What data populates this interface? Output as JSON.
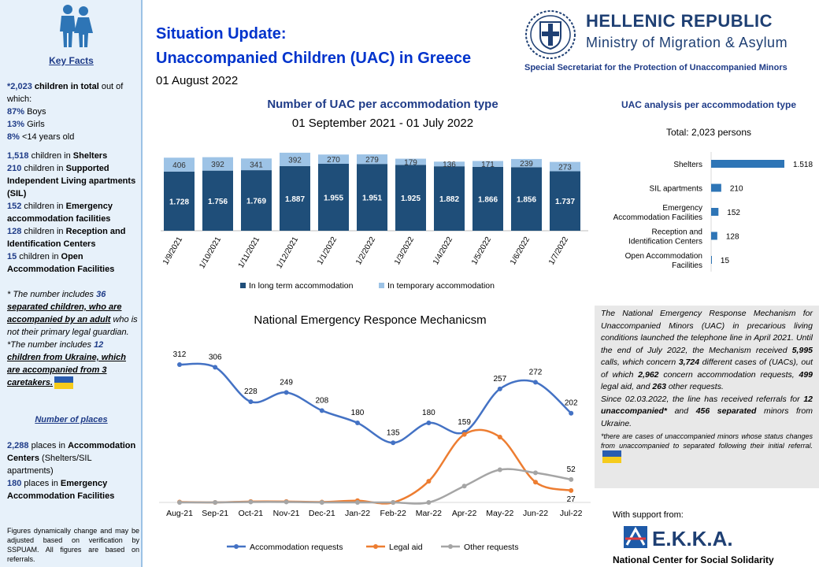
{
  "header": {
    "title_line1": "Situation Update:",
    "title_line2": "Unaccompanied Children (UAC) in Greece",
    "date": "01 August 2022",
    "republic": "HELLENIC REPUBLIC",
    "ministry": "Ministry of Migration & Asylum",
    "secretariat": "Special Secretariat for the Protection of Unaccompanied Minors"
  },
  "sidebar": {
    "key_facts_title": "Key Facts",
    "total": "*2,023",
    "total_text": " children in total",
    "total_tail": " out of which:",
    "boys_pct": "87%",
    "boys": " Boys",
    "girls_pct": "13%",
    "girls": " Girls",
    "young_pct": "8%",
    "young": " <14 years old",
    "shelters_n": "1,518",
    "shelters_pre": " children in ",
    "shelters_b": "Shelters",
    "sil_n": "210",
    "sil_pre": " children in ",
    "sil_b": "Supported Independent Living apartments (SIL)",
    "eaf_n": "152",
    "eaf_pre": " children in ",
    "eaf_b": "Emergency accommodation facilities",
    "ric_n": "128",
    "ric_pre": " children in ",
    "ric_b": "Reception and Identification Centers",
    "open_n": "15",
    "open_pre": " children in ",
    "open_b": "Open Accommodation Facilities",
    "note1_pre": "* The number includes ",
    "note1_n": "36",
    "note1_u": "separated children, who are accompanied by an adult",
    "note1_tail": " who is not their primary legal guardian.",
    "note2_pre": "*The number includes ",
    "note2_n": "12",
    "note2_u": "children from Ukraine, which are accompanied from 3 caretakers.",
    "places_title": "Number of places",
    "places_n": "2,288",
    "places_pre": " places in ",
    "places_b": "Accommodation Centers",
    "places_tail": " (Shelters/SIL apartments)",
    "places2_n": "180",
    "places2_pre": " places in ",
    "places2_b": "Emergency Accommodation Facilities",
    "footnote": "Figures dynamically change and may be adjusted based on verification by SSPUAM. All figures are based on referrals."
  },
  "chart_titles": {
    "c1_title": "Number of UAC per accommodation type",
    "c1_sub": "01 September 2021 - 01 July 2022",
    "c2_title": "UAC analysis per accommodation type",
    "c2_sub": "Total: 2,023 persons",
    "c3_title": "National Emergency Responce Mechanicsm"
  },
  "info": {
    "p1a": "The National Emergency Response Mechanism for Unaccompanied Minors (UAC) in precarious living conditions launched the telephone line in April 2021. Until the end of July 2022, the Mechanism received ",
    "calls": "5,995",
    "p1b": " calls, which concern ",
    "cases": "3,724",
    "p1c": " different cases of (UACs), out of which ",
    "accom": "2,962",
    "p1d": " concern accommodation requests, ",
    "legal": "499",
    "p1e": " legal aid, and ",
    "other": "263",
    "p1f": " other requests.",
    "p2a": "Since 02.03.2022, the line has received referrals for ",
    "p2n1": "12 unaccompanied*",
    "p2b": " and ",
    "p2n2": "456 separated",
    "p2c": " minors from Ukraine.",
    "note": "*there are cases of unaccompanied minors whose status changes from unaccompanied to separated following their initial referral."
  },
  "footer": {
    "support": "With support from:",
    "ekka": "E.K.K.A.",
    "ekka_name": "National Center for Social Solidarity"
  },
  "colors": {
    "dark": "#1f4e79",
    "light": "#9dc3e6",
    "bar2": "#2e75b6",
    "l1": "#4472c4",
    "l2": "#ed7d31",
    "l3": "#a5a5a5"
  },
  "chart_data": [
    {
      "type": "bar",
      "stacked": true,
      "title": "Number of UAC per accommodation type",
      "subtitle": "01 September 2021 - 01 July 2022",
      "categories": [
        "1/9/2021",
        "1/10/2021",
        "1/11/2021",
        "1/12/2021",
        "1/1/2022",
        "1/2/2022",
        "1/3/2022",
        "1/4/2022",
        "1/5/2022",
        "1/6/2022",
        "1/7/2022"
      ],
      "series": [
        {
          "name": "In long term accommodation",
          "values": [
            1728,
            1756,
            1769,
            1887,
            1955,
            1951,
            1925,
            1882,
            1866,
            1856,
            1737
          ],
          "labels": [
            "1.728",
            "1.756",
            "1.769",
            "1.887",
            "1.955",
            "1.951",
            "1.925",
            "1.882",
            "1.866",
            "1.856",
            "1.737"
          ]
        },
        {
          "name": "In temporary accommodation",
          "values": [
            406,
            392,
            341,
            392,
            270,
            279,
            179,
            136,
            171,
            239,
            273
          ],
          "labels": [
            "406",
            "392",
            "341",
            "392",
            "270",
            "279",
            "179",
            "136",
            "171",
            "239",
            "273"
          ]
        }
      ]
    },
    {
      "type": "bar",
      "orientation": "horizontal",
      "title": "UAC analysis per accommodation type",
      "subtitle": "Total: 2,023 persons",
      "categories": [
        "Shelters",
        "SIL apartments",
        "Emergency Accommodation Facilities",
        "Reception and Identification Centers",
        "Open Accommodation Facilities"
      ],
      "category_lines": [
        [
          "Shelters"
        ],
        [
          "SIL apartments"
        ],
        [
          "Emergency",
          "Accommodation Facilities"
        ],
        [
          "Reception and",
          "Identification Centers"
        ],
        [
          "Open Accommodation",
          "Facilities"
        ]
      ],
      "values": [
        1518,
        210,
        152,
        128,
        15
      ],
      "labels": [
        "1.518",
        "210",
        "152",
        "128",
        "15"
      ]
    },
    {
      "type": "line",
      "title": "National Emergency Responce Mechanicsm",
      "categories": [
        "Aug-21",
        "Sep-21",
        "Oct-21",
        "Nov-21",
        "Dec-21",
        "Jan-22",
        "Feb-22",
        "Mar-22",
        "Apr-22",
        "May-22",
        "Jun-22",
        "Jul-22"
      ],
      "series": [
        {
          "name": "Accommodation requests",
          "values": [
            312,
            306,
            228,
            249,
            208,
            180,
            135,
            180,
            159,
            257,
            272,
            202
          ],
          "labels": [
            "312",
            "306",
            "228",
            "249",
            "208",
            "180",
            "135",
            "180",
            "159",
            "257",
            "272",
            "202"
          ]
        },
        {
          "name": "Legal aid",
          "values": [
            1,
            0,
            2,
            2,
            1,
            4,
            0,
            48,
            154,
            148,
            46,
            27
          ],
          "labels": [
            "",
            "",
            "",
            "",
            "",
            "",
            "",
            "",
            "",
            "",
            "",
            "27"
          ]
        },
        {
          "name": "Other requests",
          "values": [
            0,
            0,
            1,
            1,
            0,
            0,
            0,
            0,
            37,
            74,
            67,
            52
          ],
          "labels": [
            "",
            "",
            "",
            "",
            "",
            "",
            "",
            "",
            "",
            "",
            "",
            "52"
          ]
        }
      ]
    }
  ]
}
